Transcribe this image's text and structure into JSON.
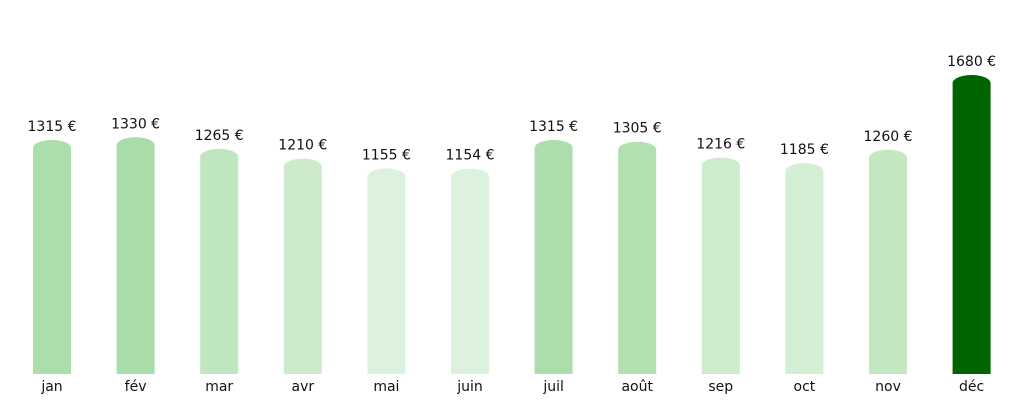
{
  "chart_data": {
    "type": "bar",
    "title": "",
    "xlabel": "",
    "ylabel": "",
    "categories": [
      "jan",
      "fév",
      "mar",
      "avr",
      "mai",
      "juin",
      "juil",
      "août",
      "sep",
      "oct",
      "nov",
      "déc"
    ],
    "values": [
      1315,
      1330,
      1265,
      1210,
      1155,
      1154,
      1315,
      1305,
      1216,
      1185,
      1260,
      1680
    ],
    "data_labels": [
      "1315 €",
      "1330 €",
      "1265 €",
      "1210 €",
      "1155 €",
      "1154 €",
      "1315 €",
      "1305 €",
      "1216 €",
      "1185 €",
      "1260 €",
      "1680 €"
    ],
    "colors": [
      "#acdeab",
      "#a9dca8",
      "#c0e6bf",
      "#cdebcc",
      "#dcf2dc",
      "#dcf2dc",
      "#acdeab",
      "#b2e0b1",
      "#cceccb",
      "#d5efd4",
      "#c2e7c1",
      "#006400"
    ],
    "ylim": [
      0,
      1680
    ],
    "grid": false,
    "y_axis_visible": false,
    "bar_style": "rounded-top"
  }
}
